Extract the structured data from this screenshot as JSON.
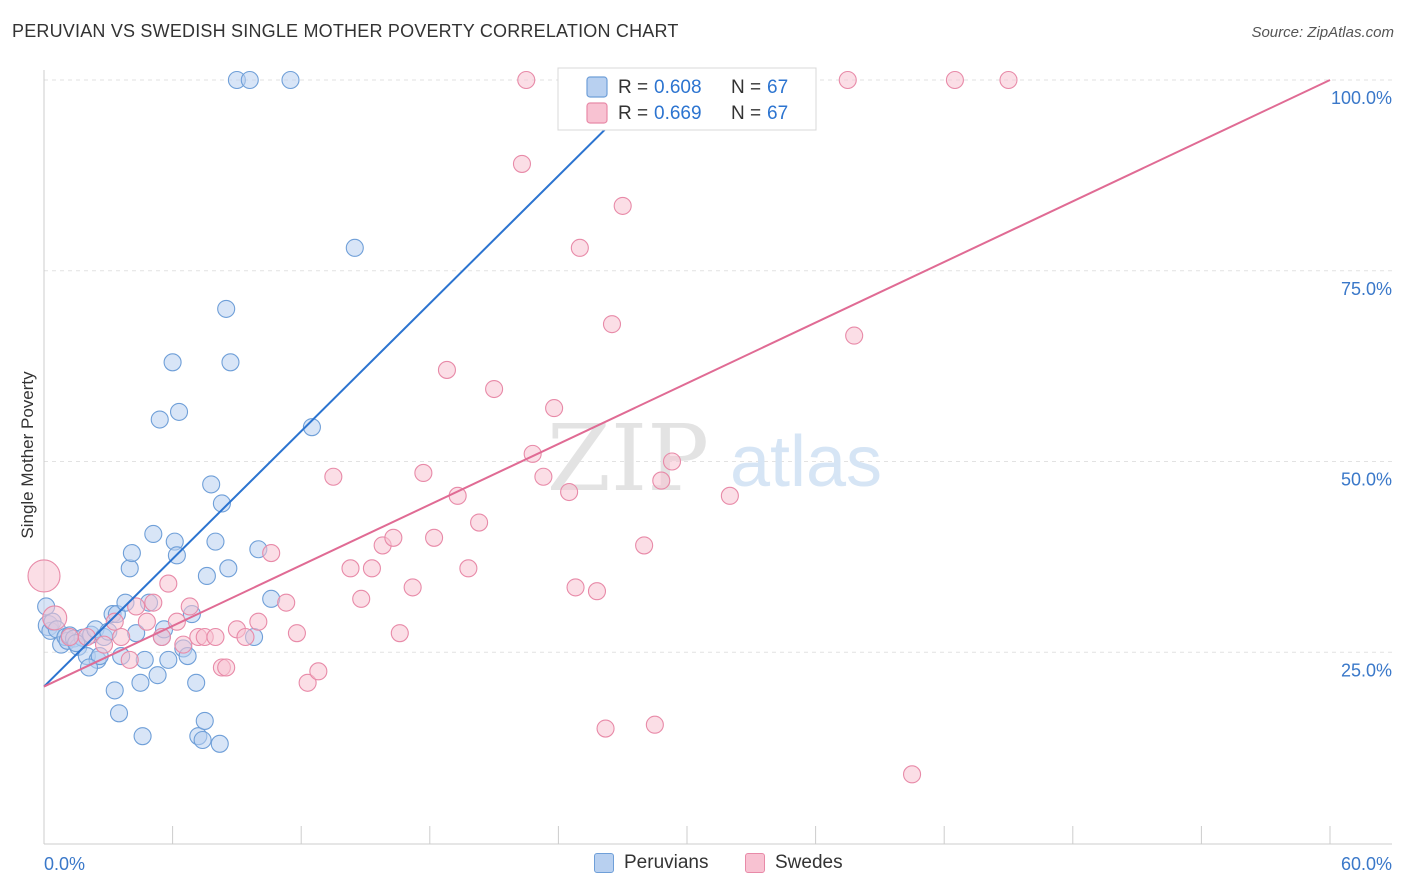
{
  "header": {
    "title": "PERUVIAN VS SWEDISH SINGLE MOTHER POVERTY CORRELATION CHART",
    "source": "Source: ZipAtlas.com"
  },
  "watermark": {
    "zip": "ZIP",
    "atlas": "atlas"
  },
  "chart_data": {
    "type": "scatter",
    "title": "PERUVIAN VS SWEDISH SINGLE MOTHER POVERTY CORRELATION CHART",
    "xlabel": "",
    "ylabel": "Single Mother Poverty",
    "xlim": [
      0,
      60
    ],
    "ylim": [
      0,
      102
    ],
    "x_tick_labels": [
      "0.0%",
      "60.0%"
    ],
    "y_ticks": [
      25,
      50,
      75,
      100
    ],
    "y_tick_labels": [
      "25.0%",
      "50.0%",
      "75.0%",
      "100.0%"
    ],
    "grid": "horizontal dashed",
    "legend_position": "top-center",
    "legend": [
      {
        "r_label": "R =",
        "r_value": "0.608",
        "n_label": "N =",
        "n_value": "67"
      },
      {
        "r_label": "R =",
        "r_value": "0.669",
        "n_label": "N =",
        "n_value": "67"
      }
    ],
    "series": [
      {
        "name": "Peruvians",
        "color": "#6f9fd8",
        "fill": "#b8d0f0",
        "line_color": "#2c74d0",
        "trendline": {
          "x": [
            0,
            28.5
          ],
          "y": [
            20.5,
            100
          ]
        },
        "points": [
          [
            0.2,
            28.5
          ],
          [
            0.3,
            27.8
          ],
          [
            0.4,
            29
          ],
          [
            0.6,
            28
          ],
          [
            0.8,
            26
          ],
          [
            1.0,
            27
          ],
          [
            1.1,
            26.5
          ],
          [
            1.2,
            27.2
          ],
          [
            1.4,
            26.8
          ],
          [
            1.6,
            25.7
          ],
          [
            1.8,
            26.9
          ],
          [
            2.0,
            24.5
          ],
          [
            2.2,
            27.3
          ],
          [
            2.4,
            28
          ],
          [
            2.5,
            24
          ],
          [
            2.6,
            24.5
          ],
          [
            2.8,
            27
          ],
          [
            3.0,
            27.7
          ],
          [
            3.2,
            30
          ],
          [
            3.4,
            30
          ],
          [
            3.6,
            24.5
          ],
          [
            3.8,
            31.5
          ],
          [
            4.0,
            36
          ],
          [
            4.1,
            38
          ],
          [
            4.3,
            27.5
          ],
          [
            4.5,
            21
          ],
          [
            4.7,
            24
          ],
          [
            4.9,
            31.5
          ],
          [
            5.1,
            40.5
          ],
          [
            5.3,
            22
          ],
          [
            5.5,
            27
          ],
          [
            5.6,
            28
          ],
          [
            5.8,
            24
          ],
          [
            6.0,
            63
          ],
          [
            6.1,
            39.5
          ],
          [
            6.2,
            37.7
          ],
          [
            6.3,
            56.5
          ],
          [
            6.5,
            25.5
          ],
          [
            6.7,
            24.5
          ],
          [
            6.9,
            30
          ],
          [
            7.1,
            21
          ],
          [
            7.2,
            14
          ],
          [
            7.4,
            13.5
          ],
          [
            7.5,
            16
          ],
          [
            7.6,
            35
          ],
          [
            7.8,
            47
          ],
          [
            8.0,
            39.5
          ],
          [
            8.2,
            13
          ],
          [
            8.3,
            44.5
          ],
          [
            8.5,
            70
          ],
          [
            8.6,
            36
          ],
          [
            8.7,
            63
          ],
          [
            9.0,
            100
          ],
          [
            9.6,
            100
          ],
          [
            10.0,
            38.5
          ],
          [
            10.6,
            32
          ],
          [
            11.5,
            100
          ],
          [
            12.5,
            54.5
          ],
          [
            14.5,
            78
          ],
          [
            3.5,
            17
          ],
          [
            3.3,
            20
          ],
          [
            4.6,
            14
          ],
          [
            2.1,
            23
          ],
          [
            1.5,
            26.2
          ],
          [
            5.4,
            55.5
          ],
          [
            0.1,
            31
          ],
          [
            9.8,
            27
          ]
        ]
      },
      {
        "name": "Swedes",
        "color": "#e88aa8",
        "fill": "#f8c2d2",
        "line_color": "#e06b94",
        "trendline": {
          "x": [
            0,
            60
          ],
          "y": [
            20.5,
            100
          ]
        },
        "points": [
          [
            0.0,
            35
          ],
          [
            0.5,
            29.5
          ],
          [
            1.2,
            27
          ],
          [
            2.0,
            27
          ],
          [
            2.8,
            26
          ],
          [
            3.3,
            29
          ],
          [
            3.6,
            27
          ],
          [
            4.0,
            24
          ],
          [
            4.3,
            31
          ],
          [
            4.8,
            29
          ],
          [
            5.1,
            31.5
          ],
          [
            5.5,
            27
          ],
          [
            5.8,
            34
          ],
          [
            6.2,
            29
          ],
          [
            6.5,
            26
          ],
          [
            6.8,
            31
          ],
          [
            7.2,
            27
          ],
          [
            7.5,
            27
          ],
          [
            8.0,
            27
          ],
          [
            8.3,
            23
          ],
          [
            8.5,
            23
          ],
          [
            9.0,
            28
          ],
          [
            9.4,
            27
          ],
          [
            10.0,
            29
          ],
          [
            10.6,
            38
          ],
          [
            11.3,
            31.5
          ],
          [
            11.8,
            27.5
          ],
          [
            12.3,
            21
          ],
          [
            12.8,
            22.5
          ],
          [
            13.5,
            48
          ],
          [
            14.3,
            36
          ],
          [
            14.8,
            32
          ],
          [
            15.3,
            36
          ],
          [
            15.8,
            39
          ],
          [
            16.3,
            40
          ],
          [
            16.6,
            27.5
          ],
          [
            17.2,
            33.5
          ],
          [
            17.7,
            48.5
          ],
          [
            18.2,
            40
          ],
          [
            18.8,
            62
          ],
          [
            19.3,
            45.5
          ],
          [
            19.8,
            36
          ],
          [
            20.3,
            42
          ],
          [
            21.0,
            59.5
          ],
          [
            22.3,
            89
          ],
          [
            22.5,
            100
          ],
          [
            22.8,
            51
          ],
          [
            23.3,
            48
          ],
          [
            23.8,
            57
          ],
          [
            24.5,
            46
          ],
          [
            24.8,
            33.5
          ],
          [
            25.0,
            78
          ],
          [
            25.8,
            33
          ],
          [
            26.2,
            15
          ],
          [
            26.5,
            68
          ],
          [
            27.0,
            83.5
          ],
          [
            28.0,
            39
          ],
          [
            28.5,
            15.5
          ],
          [
            28.8,
            47.5
          ],
          [
            29.3,
            50
          ],
          [
            30.0,
            100
          ],
          [
            32.0,
            45.5
          ],
          [
            37.5,
            100
          ],
          [
            37.8,
            66.5
          ],
          [
            40.5,
            9
          ],
          [
            42.5,
            100
          ],
          [
            45.0,
            100
          ]
        ]
      }
    ]
  }
}
